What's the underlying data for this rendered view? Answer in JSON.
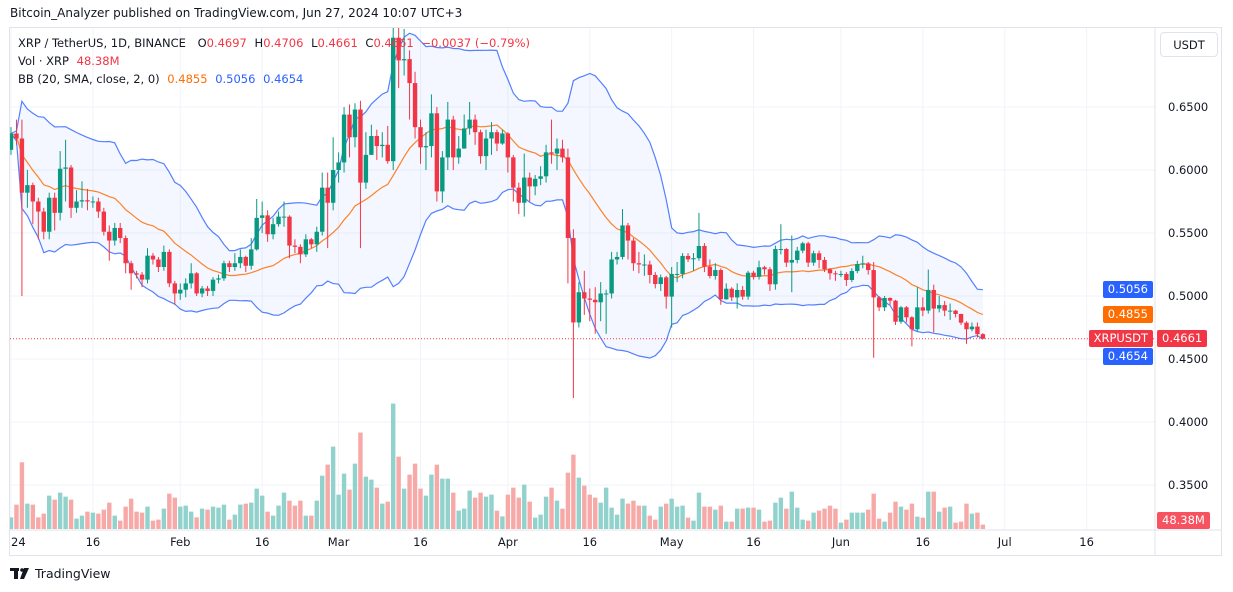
{
  "header": {
    "published": "Bitcoin_Analyzer published on TradingView.com, Jun 27, 2024 10:07 UTC+3"
  },
  "legend": {
    "symbol": "XRP / TetherUS, 1D, BINANCE",
    "o_label": "O",
    "o": "0.4697",
    "h_label": "H",
    "h": "0.4706",
    "l_label": "L",
    "l": "0.4661",
    "c_label": "C",
    "c": "0.4661",
    "change": "−0.0037 (−0.79%)",
    "vol_label": "Vol · XRP",
    "vol": "48.38M",
    "bb_label": "BB (20, SMA, close, 2, 0)",
    "bb_basis": "0.4855",
    "bb_upper": "0.5056",
    "bb_lower": "0.4654"
  },
  "price_axis": {
    "currency_button": "USDT",
    "ticks": [
      "0.6500",
      "0.6000",
      "0.5500",
      "0.5000",
      "0.4500",
      "0.4000",
      "0.3500"
    ],
    "tags": {
      "upper": "0.5056",
      "basis": "0.4855",
      "last": "0.4661",
      "lower": "0.4654",
      "symbol": "XRPUSDT",
      "volume": "48.38M"
    }
  },
  "time_axis": {
    "labels": [
      "24",
      "16",
      "Feb",
      "16",
      "Mar",
      "16",
      "Apr",
      "16",
      "May",
      "16",
      "Jun",
      "16",
      "Jul",
      "16"
    ]
  },
  "footer": {
    "brand": "TradingView"
  },
  "colors": {
    "up": "#089981",
    "down": "#f23645",
    "up_volume": "#92d2cc",
    "down_volume": "#f7a9a7",
    "bb_band": "#2962ff",
    "bb_basis": "#ff6d00",
    "band_fill": "#2962ff",
    "grid": "#f0f3fa"
  },
  "chart_data": {
    "type": "candlestick",
    "symbol": "XRPUSDT",
    "interval": "1D",
    "start_date": "2024-01-01",
    "end_date": "2024-06-27",
    "ylim": [
      0.33,
      0.713
    ],
    "y_ticks": [
      0.65,
      0.6,
      0.55,
      0.5,
      0.45,
      0.4,
      0.35
    ],
    "x_tick_dates": [
      "2024-01-01",
      "2024-01-16",
      "2024-02-01",
      "2024-02-16",
      "2024-03-01",
      "2024-03-16",
      "2024-04-01",
      "2024-04-16",
      "2024-05-01",
      "2024-05-16",
      "2024-06-01",
      "2024-06-16",
      "2024-07-01",
      "2024-07-16"
    ],
    "grid": true,
    "open_first": 0.616,
    "close": [
      0.629,
      0.625,
      0.582,
      0.588,
      0.575,
      0.567,
      0.551,
      0.578,
      0.566,
      0.601,
      0.602,
      0.57,
      0.575,
      0.576,
      0.575,
      0.575,
      0.567,
      0.551,
      0.544,
      0.554,
      0.546,
      0.526,
      0.518,
      0.517,
      0.513,
      0.532,
      0.529,
      0.523,
      0.535,
      0.51,
      0.502,
      0.505,
      0.51,
      0.518,
      0.502,
      0.506,
      0.504,
      0.513,
      0.514,
      0.526,
      0.523,
      0.526,
      0.531,
      0.524,
      0.537,
      0.562,
      0.564,
      0.549,
      0.557,
      0.563,
      0.563,
      0.54,
      0.539,
      0.533,
      0.545,
      0.541,
      0.551,
      0.586,
      0.574,
      0.6,
      0.606,
      0.644,
      0.626,
      0.648,
      0.59,
      0.612,
      0.627,
      0.619,
      0.62,
      0.607,
      0.705,
      0.687,
      0.688,
      0.669,
      0.634,
      0.618,
      0.619,
      0.645,
      0.583,
      0.61,
      0.64,
      0.61,
      0.617,
      0.633,
      0.64,
      0.63,
      0.611,
      0.625,
      0.63,
      0.621,
      0.629,
      0.61,
      0.586,
      0.574,
      0.594,
      0.587,
      0.593,
      0.595,
      0.614,
      0.613,
      0.617,
      0.61,
      0.546,
      0.479,
      0.503,
      0.498,
      0.497,
      0.495,
      0.502,
      0.502,
      0.529,
      0.531,
      0.556,
      0.544,
      0.526,
      0.525,
      0.525,
      0.5167,
      0.5095,
      0.5148,
      0.4995,
      0.5175,
      0.5175,
      0.5318,
      0.5291,
      0.53,
      0.5397,
      0.5233,
      0.5159,
      0.5206,
      0.4974,
      0.5058,
      0.4989,
      0.5048,
      0.4995,
      0.5185,
      0.5153,
      0.5228,
      0.5212,
      0.5093,
      0.5373,
      0.5373,
      0.5265,
      0.5286,
      0.536,
      0.5418,
      0.5265,
      0.5339,
      0.5286,
      0.5212,
      0.518,
      0.5175,
      0.5175,
      0.5127,
      0.5198,
      0.5254,
      0.5259,
      0.5206,
      0.4989,
      0.491,
      0.4984,
      0.4963,
      0.4796,
      0.491,
      0.4831,
      0.4736,
      0.491,
      0.4884,
      0.5048,
      0.49,
      0.4928,
      0.4884,
      0.4884,
      0.4857,
      0.4788,
      0.4736,
      0.4757,
      0.4697,
      0.4661
    ],
    "high": [
      0.634,
      0.64,
      0.64,
      0.6,
      0.59,
      0.578,
      0.57,
      0.582,
      0.582,
      0.615,
      0.624,
      0.604,
      0.584,
      0.591,
      0.585,
      0.579,
      0.578,
      0.57,
      0.556,
      0.558,
      0.558,
      0.548,
      0.528,
      0.52,
      0.519,
      0.538,
      0.534,
      0.531,
      0.54,
      0.537,
      0.512,
      0.51,
      0.514,
      0.526,
      0.519,
      0.508,
      0.508,
      0.515,
      0.517,
      0.528,
      0.528,
      0.534,
      0.537,
      0.532,
      0.546,
      0.577,
      0.575,
      0.568,
      0.562,
      0.567,
      0.575,
      0.564,
      0.545,
      0.541,
      0.549,
      0.546,
      0.555,
      0.598,
      0.598,
      0.626,
      0.614,
      0.65,
      0.652,
      0.653,
      0.655,
      0.63,
      0.636,
      0.632,
      0.63,
      0.635,
      0.74,
      0.74,
      0.712,
      0.695,
      0.678,
      0.64,
      0.63,
      0.66,
      0.65,
      0.615,
      0.654,
      0.643,
      0.627,
      0.644,
      0.654,
      0.644,
      0.632,
      0.632,
      0.638,
      0.632,
      0.632,
      0.63,
      0.612,
      0.59,
      0.613,
      0.598,
      0.596,
      0.603,
      0.62,
      0.64,
      0.625,
      0.624,
      0.617,
      0.553,
      0.511,
      0.52,
      0.506,
      0.507,
      0.511,
      0.505,
      0.535,
      0.535,
      0.569,
      0.558,
      0.546,
      0.535,
      0.533,
      0.528,
      0.519,
      0.517,
      0.516,
      0.523,
      0.527,
      0.534,
      0.534,
      0.534,
      0.566,
      0.542,
      0.529,
      0.526,
      0.522,
      0.51,
      0.507,
      0.51,
      0.508,
      0.52,
      0.52,
      0.528,
      0.524,
      0.523,
      0.54,
      0.557,
      0.538,
      0.548,
      0.539,
      0.543,
      0.543,
      0.536,
      0.536,
      0.531,
      0.522,
      0.52,
      0.52,
      0.519,
      0.522,
      0.528,
      0.532,
      0.527,
      0.527,
      0.5,
      0.5,
      0.499,
      0.497,
      0.492,
      0.492,
      0.484,
      0.507,
      0.499,
      0.521,
      0.509,
      0.5,
      0.496,
      0.494,
      0.489,
      0.486,
      0.48,
      0.479,
      0.479,
      0.4706
    ],
    "low": [
      0.612,
      0.62,
      0.5,
      0.57,
      0.557,
      0.545,
      0.545,
      0.545,
      0.552,
      0.56,
      0.575,
      0.562,
      0.566,
      0.57,
      0.568,
      0.57,
      0.562,
      0.548,
      0.528,
      0.54,
      0.542,
      0.518,
      0.505,
      0.514,
      0.507,
      0.51,
      0.525,
      0.519,
      0.52,
      0.507,
      0.493,
      0.497,
      0.499,
      0.506,
      0.5,
      0.499,
      0.5,
      0.5,
      0.51,
      0.512,
      0.519,
      0.52,
      0.522,
      0.519,
      0.521,
      0.536,
      0.55,
      0.543,
      0.545,
      0.555,
      0.555,
      0.53,
      0.534,
      0.526,
      0.531,
      0.538,
      0.535,
      0.548,
      0.538,
      0.568,
      0.59,
      0.598,
      0.61,
      0.618,
      0.538,
      0.585,
      0.612,
      0.608,
      0.61,
      0.605,
      0.6,
      0.665,
      0.675,
      0.64,
      0.625,
      0.605,
      0.6,
      0.61,
      0.575,
      0.574,
      0.6,
      0.6,
      0.605,
      0.617,
      0.628,
      0.62,
      0.605,
      0.6,
      0.612,
      0.615,
      0.62,
      0.598,
      0.575,
      0.565,
      0.563,
      0.575,
      0.58,
      0.588,
      0.59,
      0.605,
      0.6,
      0.606,
      0.51,
      0.419,
      0.475,
      0.485,
      0.48,
      0.47,
      0.48,
      0.47,
      0.498,
      0.525,
      0.529,
      0.529,
      0.52,
      0.518,
      0.516,
      0.51,
      0.506,
      0.504,
      0.49,
      0.475,
      0.511,
      0.514,
      0.527,
      0.52,
      0.528,
      0.519,
      0.514,
      0.513,
      0.493,
      0.497,
      0.496,
      0.49,
      0.497,
      0.497,
      0.513,
      0.513,
      0.517,
      0.504,
      0.505,
      0.533,
      0.523,
      0.503,
      0.526,
      0.534,
      0.523,
      0.524,
      0.522,
      0.519,
      0.513,
      0.512,
      0.515,
      0.508,
      0.511,
      0.518,
      0.522,
      0.517,
      0.451,
      0.488,
      0.488,
      0.493,
      0.477,
      0.478,
      0.479,
      0.46,
      0.472,
      0.484,
      0.486,
      0.471,
      0.487,
      0.484,
      0.481,
      0.483,
      0.477,
      0.462,
      0.472,
      0.467,
      0.4661
    ],
    "volume_millions": [
      128,
      268,
      734,
      279,
      268,
      128,
      169,
      367,
      323,
      400,
      356,
      323,
      114,
      147,
      191,
      180,
      169,
      213,
      290,
      147,
      92,
      246,
      334,
      191,
      180,
      246,
      92,
      103,
      224,
      389,
      345,
      246,
      257,
      191,
      128,
      224,
      213,
      246,
      235,
      268,
      103,
      158,
      268,
      279,
      290,
      444,
      367,
      191,
      147,
      257,
      400,
      312,
      257,
      312,
      147,
      147,
      312,
      587,
      708,
      906,
      378,
      609,
      433,
      719,
      1061,
      576,
      543,
      455,
      279,
      301,
      1380,
      796,
      444,
      598,
      719,
      444,
      367,
      598,
      708,
      554,
      554,
      400,
      202,
      224,
      422,
      345,
      400,
      356,
      378,
      202,
      139,
      378,
      455,
      345,
      488,
      301,
      125,
      158,
      356,
      455,
      312,
      224,
      620,
      818,
      565,
      477,
      378,
      345,
      290,
      455,
      235,
      158,
      334,
      279,
      312,
      257,
      257,
      147,
      103,
      246,
      279,
      334,
      246,
      257,
      125,
      92,
      400,
      246,
      246,
      213,
      257,
      81,
      81,
      224,
      224,
      235,
      235,
      213,
      81,
      92,
      290,
      345,
      224,
      411,
      235,
      103,
      92,
      180,
      202,
      224,
      257,
      224,
      70,
      103,
      180,
      180,
      180,
      213,
      389,
      114,
      81,
      180,
      301,
      246,
      213,
      279,
      136,
      125,
      411,
      411,
      191,
      235,
      246,
      70,
      81,
      279,
      169,
      180,
      48.38
    ],
    "indicators": [
      {
        "name": "BB (20, SMA, close, 2, 0)",
        "basis_last": 0.4855,
        "upper_last": 0.5056,
        "lower_last": 0.4654
      }
    ]
  }
}
